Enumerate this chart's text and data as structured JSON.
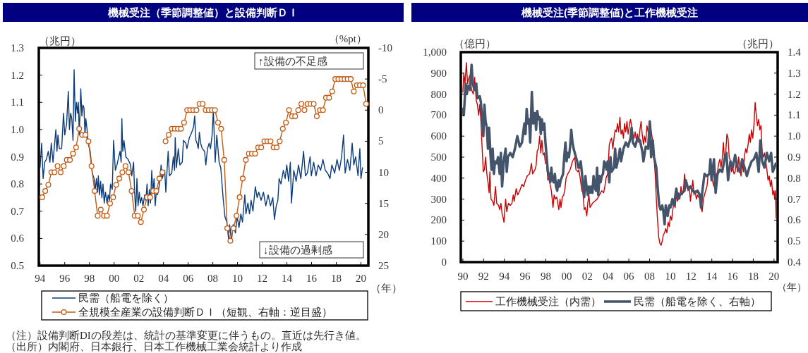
{
  "chart_data": [
    {
      "type": "line",
      "title": "機械受注（季節調整値）と設備判断ＤＩ",
      "ylabel": "（兆円）",
      "y2label": "（%pt）",
      "xlabel": "（年）",
      "xlim": [
        1993.9,
        2020.6
      ],
      "xticks": [
        {
          "value": 1994,
          "label": "94"
        },
        {
          "value": 1996,
          "label": "96"
        },
        {
          "value": 1998,
          "label": "98"
        },
        {
          "value": 2000,
          "label": "00"
        },
        {
          "value": 2002,
          "label": "02"
        },
        {
          "value": 2004,
          "label": "04"
        },
        {
          "value": 2006,
          "label": "06"
        },
        {
          "value": 2008,
          "label": "08"
        },
        {
          "value": 2010,
          "label": "10"
        },
        {
          "value": 2012,
          "label": "12"
        },
        {
          "value": 2014,
          "label": "14"
        },
        {
          "value": 2016,
          "label": "16"
        },
        {
          "value": 2018,
          "label": "18"
        },
        {
          "value": 2020,
          "label": "20"
        }
      ],
      "ylim": [
        0.5,
        1.3
      ],
      "yticks": [
        0.5,
        0.6,
        0.7,
        0.8,
        0.9,
        {
          "value": 1,
          "label": "1.0"
        },
        1.1,
        1.2,
        1.3
      ],
      "y2lim": [
        25,
        -10
      ],
      "y2ticks": [
        -10,
        -5,
        0,
        5,
        10,
        15,
        20,
        25
      ],
      "legend": "bottom",
      "series": [
        {
          "name": "民需（船電を除く）",
          "color": "#0b3b7a",
          "marker": "none",
          "x": [
            1994,
            1994.13,
            1994.25,
            1994.38,
            1994.51,
            1994.67,
            1994.8,
            1994.91,
            1995.05,
            1995.28,
            1995.37,
            1995.45,
            1995.56,
            1995.75,
            1995.9,
            1996,
            1996.15,
            1996.29,
            1996.38,
            1996.48,
            1996.57,
            1996.67,
            1996.76,
            1996.86,
            1996.95,
            1997.05,
            1997.1,
            1997.18,
            1997.3,
            1997.39,
            1997.47,
            1997.56,
            1997.64,
            1997.71,
            1997.81,
            1997.9,
            1998.06,
            1998.15,
            1998.23,
            1998.38,
            1998.48,
            1998.57,
            1998.67,
            1998.72,
            1998.82,
            1998.91,
            1999.01,
            1999.1,
            1999.2,
            1999.3,
            1999.43,
            1999.52,
            1999.62,
            1999.71,
            1999.85,
            1999.96,
            2000.1,
            2000.23,
            2000.38,
            2000.48,
            2000.57,
            2000.63,
            2000.7,
            2000.8,
            2000.95,
            2001.14,
            2001.33,
            2001.43,
            2001.58,
            2001.66,
            2001.75,
            2001.85,
            2001.94,
            2002.04,
            2002.13,
            2002.23,
            2002.34,
            2002.48,
            2002.57,
            2002.67,
            2002.76,
            2002.86,
            2002.95,
            2003.05,
            2003.14,
            2003.24,
            2003.33,
            2003.43,
            2003.52,
            2003.68,
            2003.81,
            2003.9,
            2004.1,
            2004.19,
            2004.29,
            2004.38,
            2004.48,
            2004.67,
            2004.8,
            2004.9,
            2004.95,
            2005.05,
            2005.2,
            2005.33,
            2005.52,
            2005.62,
            2005.81,
            2005.9,
            2006.1,
            2006.29,
            2006.44,
            2006.53,
            2006.63,
            2006.72,
            2006.82,
            2006.91,
            2007.01,
            2007.14,
            2007.33,
            2007.43,
            2007.57,
            2007.7,
            2007.81,
            2007.94,
            2008.04,
            2008.19,
            2008.32,
            2008.51,
            2008.64,
            2008.83,
            2008.98,
            2009.13,
            2009.27,
            2009.36,
            2009.51,
            2009.64,
            2009.83,
            2009.97,
            2010.12,
            2010.27,
            2010.4,
            2010.59,
            2010.68,
            2010.84,
            2010.97,
            2011.1,
            2011.25,
            2011.44,
            2011.59,
            2011.72,
            2011.91,
            2012.1,
            2012.29,
            2012.48,
            2012.67,
            2012.86,
            2012.99,
            2013.14,
            2013.27,
            2013.37,
            2013.52,
            2013.71,
            2013.86,
            2013.99,
            2014.14,
            2014.28,
            2014.37,
            2014.56,
            2014.75,
            2014.94,
            2015.13,
            2015.35,
            2015.5,
            2015.66,
            2015.88,
            2015.98,
            2016.17,
            2016.36,
            2016.54,
            2016.73,
            2016.92,
            2017.11,
            2017.3,
            2017.49,
            2017.64,
            2017.87,
            2018.06,
            2018.25,
            2018.43,
            2018.59,
            2018.72,
            2018.91,
            2019.1,
            2019.29,
            2019.42,
            2019.57,
            2019.76,
            2019.91,
            2020,
            2020.13
          ],
          "values": [
            0.86,
            0.95,
            0.82,
            0.88,
            0.89,
            0.92,
            0.88,
            0.95,
            0.88,
            1.0,
            0.92,
            0.98,
            0.93,
            0.93,
            1.06,
            0.98,
            1.02,
            1.14,
            1.0,
            1.06,
            1.04,
            0.96,
            1.22,
            1.03,
            1.1,
            1.06,
            1.1,
            0.98,
            1.15,
            1.05,
            1.09,
            1.08,
            0.98,
            1.04,
            1.0,
            0.95,
            0.92,
            0.88,
            0.84,
            0.82,
            0.78,
            0.82,
            0.77,
            0.83,
            0.76,
            0.81,
            0.75,
            0.8,
            0.73,
            0.77,
            0.73,
            0.76,
            0.74,
            0.8,
            0.78,
            0.96,
            0.85,
            0.87,
            0.9,
            0.92,
            0.88,
            1.04,
            0.92,
            0.96,
            0.9,
            0.89,
            0.87,
            0.83,
            0.88,
            0.77,
            0.7,
            0.82,
            0.72,
            0.77,
            0.73,
            0.75,
            0.72,
            0.76,
            0.74,
            0.8,
            0.72,
            0.78,
            0.73,
            0.85,
            0.77,
            0.82,
            0.72,
            0.78,
            0.76,
            0.8,
            0.87,
            0.82,
            0.85,
            0.77,
            0.85,
            0.92,
            0.83,
            0.84,
            0.9,
            0.85,
            0.97,
            0.86,
            0.93,
            0.87,
            0.88,
            0.96,
            0.95,
            0.93,
            0.97,
            0.99,
            1.01,
            1.05,
            0.96,
            0.95,
            0.93,
            0.99,
            0.95,
            0.93,
            0.92,
            0.87,
            0.93,
            0.95,
            0.93,
            0.98,
            1.07,
            0.88,
            0.98,
            0.88,
            0.86,
            0.75,
            0.68,
            0.66,
            0.6,
            0.65,
            0.59,
            0.65,
            0.62,
            0.68,
            0.64,
            0.69,
            0.66,
            0.76,
            0.69,
            0.73,
            0.69,
            0.74,
            0.7,
            0.79,
            0.75,
            0.77,
            0.74,
            0.77,
            0.72,
            0.76,
            0.72,
            0.75,
            0.67,
            0.72,
            0.74,
            0.82,
            0.8,
            0.85,
            0.82,
            0.87,
            0.81,
            0.88,
            0.73,
            0.85,
            0.81,
            0.87,
            0.82,
            0.92,
            0.83,
            0.84,
            0.9,
            0.83,
            0.88,
            0.83,
            0.87,
            0.85,
            0.89,
            0.85,
            0.84,
            0.82,
            0.87,
            0.84,
            0.89,
            0.85,
            0.9,
            0.98,
            0.84,
            0.89,
            0.85,
            0.95,
            0.87,
            0.9,
            0.83,
            0.93,
            0.82,
            0.86
          ]
        },
        {
          "name": "全規模全産業の設備判断ＤＩ（短観、右軸：逆目盛）",
          "color": "#c55a11",
          "axis": "y2",
          "marker": "circle",
          "x": [
            1994.17,
            1994.42,
            1994.67,
            1994.92,
            1995.17,
            1995.42,
            1995.67,
            1995.92,
            1996.17,
            1996.42,
            1996.67,
            1996.92,
            1997.17,
            1997.42,
            1997.67,
            1997.92,
            1998.17,
            1998.42,
            1998.67,
            1998.92,
            1999.17,
            1999.42,
            1999.67,
            1999.92,
            2000.17,
            2000.42,
            2000.67,
            2000.92,
            2001.17,
            2001.42,
            2001.67,
            2001.92,
            2002.17,
            2002.42,
            2002.67,
            2002.92,
            2003.17,
            2003.42,
            2003.67,
            2003.92,
            2004.04,
            2004.17,
            2004.42,
            2004.67,
            2004.92,
            2005.17,
            2005.42,
            2005.67,
            2005.92,
            2006.17,
            2006.42,
            2006.67,
            2006.92,
            2007.17,
            2007.42,
            2007.67,
            2007.92,
            2008.17,
            2008.42,
            2008.67,
            2008.92,
            2009.17,
            2009.42,
            2009.67,
            2009.92,
            2010.17,
            2010.42,
            2010.67,
            2010.92,
            2011.17,
            2011.42,
            2011.67,
            2011.92,
            2012.17,
            2012.42,
            2012.67,
            2012.92,
            2013.17,
            2013.42,
            2013.67,
            2013.92,
            2014.17,
            2014.42,
            2014.67,
            2014.92,
            2015.17,
            2015.42,
            2015.67,
            2015.92,
            2016.17,
            2016.42,
            2016.67,
            2016.92,
            2017.17,
            2017.42,
            2017.67,
            2017.92,
            2018.17,
            2018.42,
            2018.67,
            2018.92,
            2019.17,
            2019.42,
            2019.67,
            2019.92,
            2020.17,
            2020.42
          ],
          "values": [
            14,
            13,
            12,
            10,
            10,
            9,
            10,
            9,
            8,
            8,
            7,
            6,
            3,
            4,
            4,
            5,
            9,
            13,
            17,
            16,
            17,
            17,
            15,
            14,
            12,
            11,
            10,
            9,
            10,
            13,
            17,
            17,
            18,
            16,
            14,
            14,
            13,
            13,
            11,
            10,
            null,
            5,
            4,
            3,
            3,
            3,
            3,
            2,
            0,
            0,
            0,
            0,
            -1,
            -1,
            0,
            0,
            0,
            0,
            2,
            3,
            8,
            19,
            21,
            19,
            17,
            14,
            11,
            8,
            7,
            7,
            7,
            6,
            6,
            5,
            5,
            5,
            6,
            6,
            5,
            3,
            2,
            0,
            1,
            1,
            0,
            -1,
            0,
            -1,
            -1,
            -1,
            1,
            0,
            0,
            -2,
            -2,
            -3,
            -5,
            -5,
            -5,
            -5,
            -5,
            -5,
            -3,
            -4,
            -4,
            -4,
            -1
          ]
        }
      ],
      "annotations": [
        "↑設備の不足感",
        "↓設備の過剰感",
        "（注）設備判断DIの段差は、統計の基準変更に伴うもの。直近は先行き値。",
        "（出所）内閣府、日本銀行、日本工作機械工業会統計より作成"
      ]
    },
    {
      "type": "line",
      "title": "機械受注(季節調整値)と工作機械受注",
      "ylabel": "（億円）",
      "y2label": "（兆円）",
      "xlabel": "（年）",
      "xlim": [
        1989.8,
        2020.35
      ],
      "xticks": [
        {
          "value": 1990,
          "label": "90"
        },
        {
          "value": 1992,
          "label": "92"
        },
        {
          "value": 1994,
          "label": "94"
        },
        {
          "value": 1996,
          "label": "96"
        },
        {
          "value": 1998,
          "label": "98"
        },
        {
          "value": 2000,
          "label": "00"
        },
        {
          "value": 2002,
          "label": "02"
        },
        {
          "value": 2004,
          "label": "04"
        },
        {
          "value": 2006,
          "label": "06"
        },
        {
          "value": 2008,
          "label": "08"
        },
        {
          "value": 2010,
          "label": "10"
        },
        {
          "value": 2012,
          "label": "12"
        },
        {
          "value": 2014,
          "label": "14"
        },
        {
          "value": 2016,
          "label": "16"
        },
        {
          "value": 2018,
          "label": "18"
        },
        {
          "value": 2020,
          "label": "20"
        }
      ],
      "ylim": [
        0,
        1000
      ],
      "yticks": [
        0,
        100,
        200,
        300,
        400,
        500,
        600,
        700,
        800,
        900,
        {
          "value": 1000,
          "label": "1,000"
        }
      ],
      "y2lim": [
        0.4,
        1.4
      ],
      "y2ticks": [
        0.4,
        0.5,
        0.6,
        0.7,
        0.8,
        0.9,
        {
          "value": 1,
          "label": "1.0"
        },
        1.1,
        1.2,
        1.3,
        1.4
      ],
      "legend": "bottom",
      "series": [
        {
          "name": "工作機械受注（内需）",
          "color": "#cc0000",
          "x": [
            1990,
            1990.09,
            1990.2,
            1990.34,
            1990.45,
            1990.54,
            1990.68,
            1990.84,
            1991,
            1991.13,
            1991.29,
            1991.4,
            1991.52,
            1991.63,
            1991.74,
            1991.86,
            1991.97,
            1992.08,
            1992.19,
            1992.31,
            1992.42,
            1992.53,
            1992.6,
            1992.71,
            1992.87,
            1992.99,
            1993.14,
            1993.26,
            1993.44,
            1993.55,
            1993.67,
            1993.78,
            1993.89,
            1993.96,
            1994.12,
            1994.23,
            1994.39,
            1994.57,
            1994.73,
            1994.86,
            1994.95,
            1995.14,
            1995.29,
            1995.48,
            1995.7,
            1995.86,
            1996.04,
            1996.2,
            1996.43,
            1996.61,
            1996.72,
            1996.95,
            1997.06,
            1997.17,
            1997.29,
            1997.4,
            1997.51,
            1997.62,
            1997.74,
            1997.85,
            1997.96,
            1998.08,
            1998.19,
            1998.3,
            1998.53,
            1998.69,
            1998.8,
            1998.91,
            1999.05,
            1999.25,
            1999.37,
            1999.46,
            1999.59,
            1999.73,
            1999.84,
            1999.95,
            2000.11,
            2000.34,
            2000.57,
            2000.79,
            2000.9,
            2001.09,
            2001.18,
            2001.31,
            2001.47,
            2001.58,
            2001.7,
            2001.81,
            2001.95,
            2002.04,
            2002.15,
            2002.26,
            2002.49,
            2002.71,
            2002.94,
            2003.17,
            2003.39,
            2003.57,
            2003.69,
            2003.8,
            2003.96,
            2004.12,
            2004.23,
            2004.34,
            2004.46,
            2004.57,
            2004.68,
            2004.8,
            2004.91,
            2005.02,
            2005.14,
            2005.25,
            2005.37,
            2005.48,
            2005.59,
            2005.71,
            2005.82,
            2005.93,
            2006.05,
            2006.16,
            2006.27,
            2006.39,
            2006.5,
            2006.61,
            2006.73,
            2006.84,
            2006.95,
            2007.07,
            2007.18,
            2007.29,
            2007.41,
            2007.52,
            2007.63,
            2007.75,
            2007.86,
            2007.97,
            2008.09,
            2008.2,
            2008.31,
            2008.43,
            2008.54,
            2008.65,
            2008.77,
            2008.88,
            2008.99,
            2009.11,
            2009.22,
            2009.33,
            2009.45,
            2009.56,
            2009.67,
            2009.79,
            2009.9,
            2010.01,
            2010.13,
            2010.24,
            2010.35,
            2010.47,
            2010.58,
            2010.69,
            2010.81,
            2010.92,
            2011.03,
            2011.15,
            2011.26,
            2011.37,
            2011.49,
            2011.6,
            2011.71,
            2011.83,
            2011.94,
            2012.05,
            2012.17,
            2012.28,
            2012.39,
            2012.51,
            2012.62,
            2012.73,
            2012.85,
            2012.96,
            2013.07,
            2013.19,
            2013.3,
            2013.41,
            2013.53,
            2013.64,
            2013.76,
            2013.87,
            2013.98,
            2014.1,
            2014.21,
            2014.32,
            2014.44,
            2014.55,
            2014.66,
            2014.78,
            2014.89,
            2015,
            2015.12,
            2015.23,
            2015.34,
            2015.46,
            2015.57,
            2015.68,
            2015.8,
            2015.91,
            2016.02,
            2016.14,
            2016.25,
            2016.36,
            2016.48,
            2016.59,
            2016.7,
            2016.82,
            2016.93,
            2017.04,
            2017.16,
            2017.27,
            2017.38,
            2017.5,
            2017.61,
            2017.72,
            2017.84,
            2017.95,
            2018.06,
            2018.18,
            2018.29,
            2018.4,
            2018.52,
            2018.63,
            2018.74,
            2018.86,
            2018.97,
            2019.08,
            2019.2,
            2019.31,
            2019.42,
            2019.54,
            2019.65,
            2019.76,
            2019.88,
            2019.99,
            2020.06,
            2020.14,
            2020.2
          ],
          "values": [
            810,
            900,
            850,
            950,
            850,
            870,
            890,
            820,
            800,
            880,
            770,
            750,
            700,
            750,
            670,
            540,
            430,
            440,
            500,
            420,
            380,
            330,
            430,
            300,
            290,
            270,
            360,
            280,
            270,
            250,
            280,
            230,
            210,
            190,
            300,
            240,
            280,
            270,
            280,
            320,
            290,
            350,
            320,
            340,
            370,
            360,
            390,
            410,
            420,
            470,
            420,
            440,
            460,
            530,
            540,
            600,
            520,
            580,
            510,
            520,
            470,
            470,
            390,
            400,
            340,
            260,
            320,
            300,
            310,
            250,
            300,
            260,
            310,
            320,
            350,
            400,
            420,
            440,
            480,
            500,
            440,
            430,
            440,
            400,
            340,
            330,
            250,
            260,
            220,
            280,
            320,
            260,
            280,
            290,
            300,
            320,
            340,
            330,
            360,
            400,
            420,
            560,
            580,
            590,
            540,
            590,
            630,
            620,
            660,
            620,
            690,
            610,
            630,
            590,
            660,
            620,
            670,
            610,
            650,
            680,
            650,
            610,
            590,
            620,
            580,
            610,
            570,
            630,
            670,
            610,
            560,
            600,
            570,
            650,
            620,
            630,
            660,
            610,
            570,
            500,
            420,
            300,
            200,
            120,
            90,
            80,
            100,
            130,
            140,
            160,
            140,
            190,
            170,
            220,
            200,
            250,
            280,
            260,
            320,
            290,
            330,
            300,
            360,
            320,
            340,
            420,
            360,
            380,
            340,
            360,
            290,
            340,
            390,
            320,
            340,
            300,
            320,
            310,
            300,
            260,
            240,
            300,
            320,
            340,
            360,
            410,
            430,
            470,
            420,
            380,
            360,
            430,
            400,
            430,
            470,
            490,
            450,
            490,
            570,
            480,
            520,
            610,
            590,
            500,
            480,
            430,
            450,
            420,
            430,
            480,
            430,
            500,
            450,
            410,
            480,
            430,
            510,
            540,
            520,
            560,
            610,
            570,
            630,
            590,
            650,
            760,
            700,
            650,
            680,
            630,
            650,
            520,
            500,
            520,
            480,
            440,
            390,
            410,
            360,
            390,
            320,
            340,
            300,
            340,
            210
          ]
        },
        {
          "name": "民需（船電を除く、右軸）",
          "color": "#44546a",
          "axis": "y2",
          "x": [
            1990,
            1990.09,
            1990.27,
            1990.38,
            1990.5,
            1990.68,
            1990.84,
            1990.95,
            1991.13,
            1991.29,
            1991.4,
            1991.63,
            1991.74,
            1991.97,
            1992.08,
            1992.19,
            1992.31,
            1992.42,
            1992.53,
            1992.65,
            1992.76,
            1992.87,
            1992.99,
            1993.1,
            1993.26,
            1993.39,
            1993.55,
            1993.67,
            1993.78,
            1993.94,
            1994.12,
            1994.23,
            1994.34,
            1994.57,
            1994.8,
            1995.02,
            1995.25,
            1995.48,
            1995.7,
            1995.93,
            1996.04,
            1996.15,
            1996.27,
            1996.38,
            1996.49,
            1996.65,
            1996.79,
            1996.95,
            1997.06,
            1997.17,
            1997.29,
            1997.4,
            1997.51,
            1997.62,
            1997.74,
            1997.85,
            1997.96,
            1998.08,
            1998.19,
            1998.3,
            1998.42,
            1998.53,
            1998.64,
            1998.76,
            1998.87,
            1998.98,
            1999.1,
            1999.21,
            1999.32,
            1999.43,
            1999.66,
            1999.77,
            1999.89,
            2000,
            2000.11,
            2000.23,
            2000.34,
            2000.45,
            2000.57,
            2000.68,
            2000.79,
            2000.9,
            2001.02,
            2001.13,
            2001.24,
            2001.36,
            2001.47,
            2001.58,
            2001.7,
            2001.81,
            2001.92,
            2002.04,
            2002.15,
            2002.26,
            2002.38,
            2002.49,
            2002.6,
            2002.71,
            2002.83,
            2002.94,
            2003.05,
            2003.17,
            2003.28,
            2003.39,
            2003.51,
            2003.62,
            2003.73,
            2003.85,
            2003.96,
            2004.12,
            2004.23,
            2004.34,
            2004.57,
            2004.68,
            2004.8,
            2005.02,
            2005.14,
            2005.25,
            2005.48,
            2005.71,
            2005.93,
            2006.16,
            2006.27,
            2006.39,
            2006.61,
            2006.84,
            2007.07,
            2007.29,
            2007.41,
            2007.63,
            2007.86,
            2008.02,
            2008.15,
            2008.31,
            2008.43,
            2008.65,
            2008.77,
            2008.93,
            2009.06,
            2009.22,
            2009.33,
            2009.45,
            2009.56,
            2009.74,
            2009.9,
            2010.01,
            2010.2,
            2010.35,
            2010.58,
            2010.74,
            2010.92,
            2011.15,
            2011.37,
            2011.49,
            2011.71,
            2011.94,
            2012.17,
            2012.39,
            2012.62,
            2012.85,
            2012.96,
            2013.07,
            2013.3,
            2013.53,
            2013.76,
            2013.87,
            2013.98,
            2014.21,
            2014.37,
            2014.55,
            2014.78,
            2015,
            2015.23,
            2015.41,
            2015.57,
            2015.8,
            2016.02,
            2016.25,
            2016.48,
            2016.7,
            2016.93,
            2017.16,
            2017.38,
            2017.61,
            2017.84,
            2018.06,
            2018.29,
            2018.52,
            2018.68,
            2018.86,
            2019.08,
            2019.31,
            2019.54,
            2019.72,
            2019.88,
            2020.04,
            2020.18
          ],
          "values": [
            1.13,
            1.1,
            1.25,
            1.2,
            1.24,
            1.22,
            1.34,
            1.25,
            1.22,
            1.25,
            1.18,
            1.19,
            1.16,
            1.0,
            1.15,
            1.07,
            1.04,
            0.94,
            1.04,
            0.92,
            0.84,
            0.94,
            0.82,
            0.88,
            0.87,
            0.9,
            0.82,
            0.92,
            0.76,
            0.88,
            0.94,
            0.83,
            0.9,
            0.92,
            0.9,
            0.94,
            1.0,
            0.95,
            0.97,
            1.06,
            1.01,
            1.13,
            1.06,
            1.08,
            0.97,
            1.21,
            1.06,
            1.11,
            1.03,
            1.12,
            1.08,
            1.09,
            1.01,
            1.08,
            1.03,
            1.06,
            0.97,
            0.9,
            0.83,
            0.82,
            0.78,
            0.85,
            0.79,
            0.78,
            0.82,
            0.76,
            0.74,
            0.79,
            0.76,
            0.79,
            0.82,
            0.9,
            0.97,
            0.88,
            0.92,
            0.9,
            0.95,
            1.03,
            0.97,
            0.94,
            0.92,
            0.9,
            0.88,
            0.85,
            0.85,
            0.88,
            0.83,
            0.76,
            0.71,
            0.81,
            0.76,
            0.72,
            0.76,
            0.73,
            0.76,
            0.73,
            0.81,
            0.76,
            0.74,
            0.85,
            0.72,
            0.81,
            0.78,
            0.81,
            0.82,
            0.88,
            0.87,
            0.84,
            0.88,
            0.78,
            0.9,
            0.83,
            0.85,
            0.94,
            0.85,
            0.9,
            0.94,
            0.88,
            0.94,
            0.97,
            0.95,
            0.99,
            1.04,
            0.97,
            0.95,
            0.99,
            0.98,
            0.93,
            0.88,
            0.95,
            0.94,
            1.07,
            0.9,
            0.98,
            0.9,
            0.85,
            0.76,
            0.67,
            0.65,
            0.67,
            0.64,
            0.58,
            0.67,
            0.62,
            0.67,
            0.66,
            0.7,
            0.67,
            0.75,
            0.7,
            0.72,
            0.73,
            0.74,
            0.79,
            0.75,
            0.76,
            0.74,
            0.73,
            0.74,
            0.72,
            0.66,
            0.73,
            0.82,
            0.81,
            0.82,
            0.89,
            0.79,
            0.89,
            0.73,
            0.82,
            0.84,
            0.83,
            0.89,
            0.92,
            0.79,
            0.88,
            0.85,
            0.91,
            0.85,
            0.83,
            0.89,
            0.85,
            0.81,
            0.85,
            0.88,
            0.89,
            0.92,
            0.83,
            0.98,
            0.88,
            0.85,
            0.92,
            0.88,
            0.92,
            0.83,
            0.85,
            0.87
          ]
        }
      ]
    }
  ]
}
